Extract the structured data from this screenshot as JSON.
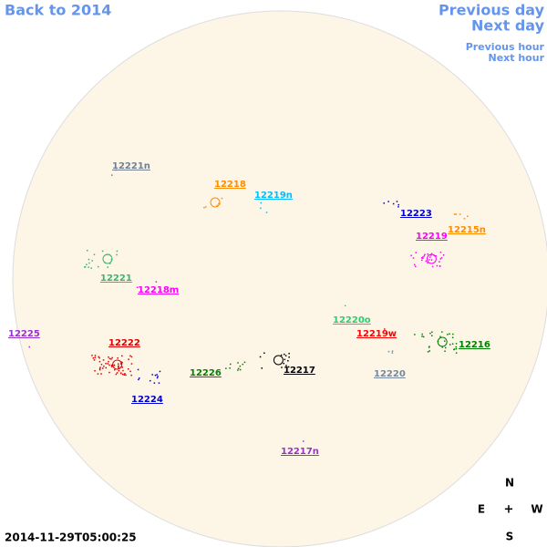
{
  "nav": {
    "back": "Back to 2014",
    "previous_day": "Previous day",
    "next_day": "Next day",
    "previous_hour": "Previous hour",
    "next_hour": "Next hour"
  },
  "regions": [
    {
      "label": "12221n",
      "color": "#708090"
    },
    {
      "label": "12218",
      "color": "#ff8c00"
    },
    {
      "label": "12219n",
      "color": "#00bfff"
    },
    {
      "label": "12223",
      "color": "#0000cd"
    },
    {
      "label": "12215n",
      "color": "#ff8c00"
    },
    {
      "label": "12219",
      "color": "#ff00ff"
    },
    {
      "label": "12221",
      "color": "#3cb371"
    },
    {
      "label": "12218m",
      "color": "#ff00ff"
    },
    {
      "label": "12225",
      "color": "#9932cc"
    },
    {
      "label": "12220o",
      "color": "#2ecc71"
    },
    {
      "label": "12219w",
      "color": "#ff0000"
    },
    {
      "label": "12222",
      "color": "#dd0000"
    },
    {
      "label": "12216",
      "color": "#008000"
    },
    {
      "label": "12226",
      "color": "#008000"
    },
    {
      "label": "12217",
      "color": "#000000"
    },
    {
      "label": "12220",
      "color": "#778899"
    },
    {
      "label": "12224",
      "color": "#0000cd"
    },
    {
      "label": "12217n",
      "color": "#9932cc"
    }
  ],
  "timestamp": "2014-11-29T05:00:25",
  "compass": {
    "north": "N",
    "east": "E",
    "center": "+",
    "west": "W",
    "south": "S"
  }
}
